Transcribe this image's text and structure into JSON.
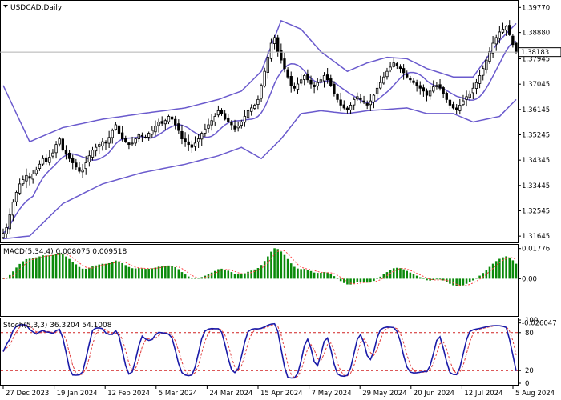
{
  "window": {
    "menu_arrow": "down-triangle-icon",
    "title": "USDCAD,Daily"
  },
  "chart_data": [
    {
      "type": "candlestick",
      "title": "USDCAD,Daily",
      "current_price": "1.38183",
      "ylim": [
        1.3145,
        1.3995
      ],
      "y_ticks": [
        "1.39770",
        "1.38880",
        "1.37945",
        "1.37045",
        "1.36145",
        "1.35245",
        "1.34345",
        "1.33445",
        "1.32545",
        "1.31645"
      ],
      "x_ticks": [
        "27 Dec 2023",
        "19 Jan 2024",
        "12 Feb 2024",
        "5 Mar 2024",
        "24 Mar 2024",
        "15 Apr 2024",
        "7 May 2024",
        "29 May 2024",
        "20 Jun 2024",
        "12 Jul 2024",
        "5 Aug 2024"
      ],
      "close_series": [
        1.3175,
        1.3195,
        1.324,
        1.3285,
        1.332,
        1.335,
        1.3365,
        1.338,
        1.337,
        1.3385,
        1.34,
        1.342,
        1.344,
        1.343,
        1.3445,
        1.346,
        1.349,
        1.351,
        1.347,
        1.3455,
        1.344,
        1.3425,
        1.341,
        1.3395,
        1.34,
        1.3425,
        1.345,
        1.347,
        1.348,
        1.349,
        1.35,
        1.3495,
        1.3515,
        1.354,
        1.356,
        1.353,
        1.351,
        1.35,
        1.349,
        1.3495,
        1.351,
        1.3525,
        1.352,
        1.3515,
        1.353,
        1.354,
        1.3555,
        1.357,
        1.3565,
        1.3575,
        1.359,
        1.358,
        1.356,
        1.354,
        1.351,
        1.35,
        1.349,
        1.348,
        1.3495,
        1.351,
        1.353,
        1.3545,
        1.356,
        1.3575,
        1.359,
        1.361,
        1.36,
        1.358,
        1.357,
        1.356,
        1.3545,
        1.3555,
        1.357,
        1.359,
        1.361,
        1.362,
        1.363,
        1.365,
        1.37,
        1.375,
        1.38,
        1.385,
        1.387,
        1.382,
        1.379,
        1.376,
        1.373,
        1.37,
        1.369,
        1.3705,
        1.372,
        1.3735,
        1.372,
        1.3705,
        1.3695,
        1.371,
        1.372,
        1.3735,
        1.372,
        1.37,
        1.367,
        1.365,
        1.363,
        1.362,
        1.3615,
        1.363,
        1.365,
        1.366,
        1.365,
        1.364,
        1.363,
        1.3645,
        1.3665,
        1.369,
        1.371,
        1.373,
        1.375,
        1.3765,
        1.378,
        1.377,
        1.376,
        1.3745,
        1.373,
        1.372,
        1.371,
        1.37,
        1.369,
        1.368,
        1.3665,
        1.368,
        1.3695,
        1.37,
        1.369,
        1.367,
        1.365,
        1.363,
        1.362,
        1.3615,
        1.363,
        1.3645,
        1.366,
        1.367,
        1.369,
        1.371,
        1.3735,
        1.376,
        1.379,
        1.382,
        1.385,
        1.387,
        1.389,
        1.39,
        1.391,
        1.388,
        1.3845,
        1.3818
      ],
      "bollinger": {
        "upper_reference": [
          [
            0,
            1.37
          ],
          [
            8,
            1.35
          ],
          [
            18,
            1.355
          ],
          [
            30,
            1.358
          ],
          [
            42,
            1.36
          ],
          [
            55,
            1.362
          ],
          [
            65,
            1.365
          ],
          [
            72,
            1.368
          ],
          [
            78,
            1.375
          ],
          [
            84,
            1.393
          ],
          [
            90,
            1.39
          ],
          [
            96,
            1.382
          ],
          [
            104,
            1.375
          ],
          [
            110,
            1.378
          ],
          [
            116,
            1.38
          ],
          [
            122,
            1.3795
          ],
          [
            128,
            1.376
          ],
          [
            136,
            1.373
          ],
          [
            142,
            1.373
          ],
          [
            150,
            1.386
          ],
          [
            155,
            1.392
          ],
          [
            158,
            1.389
          ]
        ],
        "lower_reference": [
          [
            0,
            1.3155
          ],
          [
            8,
            1.3165
          ],
          [
            18,
            1.328
          ],
          [
            30,
            1.335
          ],
          [
            42,
            1.339
          ],
          [
            55,
            1.342
          ],
          [
            65,
            1.345
          ],
          [
            72,
            1.348
          ],
          [
            78,
            1.344
          ],
          [
            84,
            1.351
          ],
          [
            90,
            1.36
          ],
          [
            96,
            1.361
          ],
          [
            104,
            1.36
          ],
          [
            110,
            1.361
          ],
          [
            116,
            1.3615
          ],
          [
            122,
            1.362
          ],
          [
            128,
            1.36
          ],
          [
            136,
            1.36
          ],
          [
            142,
            1.357
          ],
          [
            150,
            1.359
          ],
          [
            155,
            1.365
          ],
          [
            158,
            1.37
          ]
        ]
      }
    },
    {
      "type": "histogram",
      "label": "MACD(5,34,4) 0.008075 0.009518",
      "ylim": [
        -0.0215,
        0.0195
      ],
      "y_ticks": [
        "0.01776",
        "0.00",
        "-0.026047"
      ]
    },
    {
      "type": "line",
      "label": "Stoch(5,3,3) 36.3204 54.1008",
      "ylim": [
        0,
        100
      ],
      "y_ticks": [
        "100",
        "80",
        "20",
        "0"
      ],
      "levels": [
        80,
        20
      ]
    }
  ],
  "colors": {
    "bull": "#ffffff",
    "bear": "#000000",
    "bollinger": "#6a5acd",
    "macd_hist": "#0a8a0a",
    "macd_signal": "#ff4040",
    "stoch_main": "#1a1aa8",
    "stoch_signal": "#e03a3a"
  }
}
